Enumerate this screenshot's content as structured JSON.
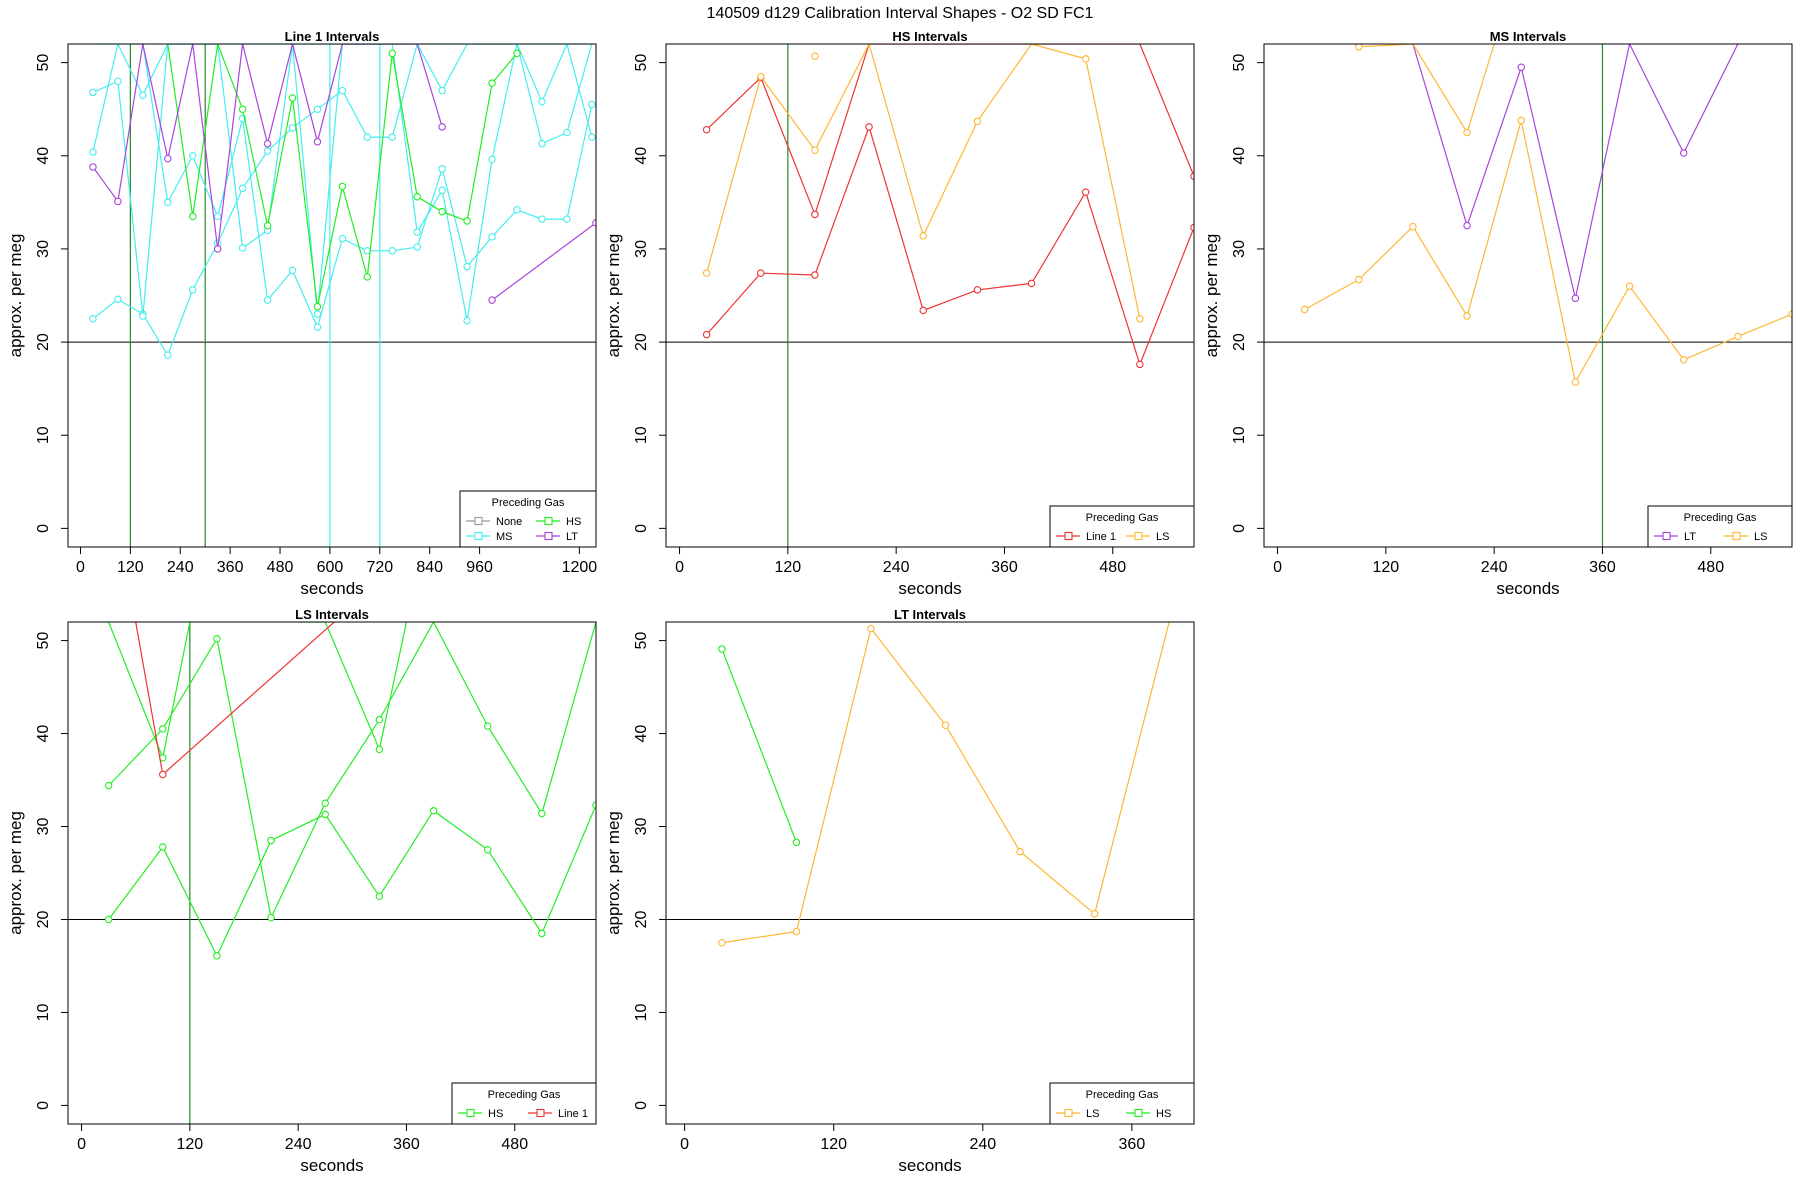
{
  "figure": {
    "title": "140509   d129   Calibration Interval Shapes - O2 SD FC1"
  },
  "colors": {
    "None": "#999999",
    "HS": "#22EE22",
    "MS": "#44EEEE",
    "LT": "#AA44DD",
    "Line 1": "#EE3333",
    "LS": "#FFB733",
    "vline_green": "#228B22",
    "vline_cyan": "#44EEEE",
    "reference": "#000000"
  },
  "chart_data": [
    {
      "type": "line",
      "title": "Line 1 Intervals",
      "xlabel": "seconds",
      "ylabel": "approx. per meg",
      "xlim": [
        -30,
        1240
      ],
      "ylim": [
        -2,
        52
      ],
      "xticks": [
        0,
        120,
        240,
        360,
        480,
        600,
        720,
        840,
        960,
        1200
      ],
      "yticks": [
        0,
        10,
        20,
        30,
        40,
        50
      ],
      "hline": 20,
      "vlines": [
        {
          "x": 120,
          "gas": "vline_green"
        },
        {
          "x": 300,
          "gas": "vline_green"
        },
        {
          "x": 600,
          "gas": "vline_cyan"
        },
        {
          "x": 720,
          "gas": "vline_cyan"
        }
      ],
      "legend": {
        "title": "Preceding Gas",
        "entries": [
          "None",
          "HS",
          "MS",
          "LT"
        ],
        "ncol": 2,
        "position": "bottom-right"
      },
      "series": [
        {
          "name": "MS",
          "x": [
            30,
            90,
            150,
            210,
            270,
            330,
            390,
            450,
            510,
            570,
            630,
            690,
            750,
            810,
            870,
            930,
            990,
            1050,
            1110,
            1170,
            1230
          ],
          "y": [
            22.5,
            24.6,
            23.0,
            18.6,
            25.6,
            30.6,
            36.5,
            40.5,
            43.0,
            45.0,
            47.0,
            42.0,
            42.0,
            52.0,
            52.0,
            52.0,
            52.0,
            52.0,
            52.0,
            52.0,
            52.0
          ]
        },
        {
          "name": "MS",
          "x": [
            30,
            90,
            150,
            210,
            270,
            330,
            390,
            450,
            510,
            570,
            630,
            690,
            750,
            810,
            870,
            930,
            990,
            1050,
            1110,
            1170,
            1230
          ],
          "y": [
            40.4,
            52.0,
            52.0,
            35.0,
            40.0,
            33.5,
            44.0,
            24.5,
            27.7,
            21.6,
            31.1,
            29.8,
            29.8,
            30.2,
            38.6,
            28.1,
            31.3,
            34.2,
            33.2,
            33.2,
            45.5
          ]
        },
        {
          "name": "MS",
          "x": [
            30,
            90,
            150,
            210,
            270,
            330,
            390,
            450,
            510,
            570,
            630,
            690,
            750,
            810,
            870,
            930,
            990,
            1050,
            1110,
            1170,
            1230
          ],
          "y": [
            46.8,
            48.0,
            22.8,
            52.0,
            52.0,
            52.0,
            30.1,
            32.0,
            52.0,
            23.0,
            52.0,
            52.0,
            52.0,
            31.8,
            36.3,
            22.3,
            39.6,
            52.0,
            41.3,
            42.5,
            52.0
          ]
        },
        {
          "name": "MS",
          "x": [
            30,
            90,
            150,
            210,
            270,
            330,
            390,
            450,
            510,
            570,
            630,
            690,
            750,
            810,
            870,
            930,
            990,
            1050,
            1110,
            1170,
            1230
          ],
          "y": [
            52.0,
            52.0,
            46.5,
            52.0,
            52.0,
            52.0,
            52.0,
            52.0,
            52.0,
            52.0,
            52.0,
            52.0,
            52.0,
            52.0,
            47.0,
            52.0,
            52.0,
            52.0,
            45.8,
            52.0,
            42.0
          ]
        },
        {
          "name": "HS",
          "x": [
            210,
            270,
            330,
            390,
            450,
            510,
            570,
            630,
            690,
            750,
            810,
            870,
            930,
            990,
            1050
          ],
          "y": [
            52.0,
            33.5,
            52.0,
            45.0,
            32.5,
            46.2,
            23.8,
            36.7,
            27.0,
            51.0,
            35.6,
            34.0,
            33.0,
            47.8,
            51.0
          ]
        },
        {
          "name": "LT",
          "x": [
            30,
            90,
            150,
            210,
            270,
            330,
            390,
            450,
            510,
            570,
            630,
            690,
            750,
            810,
            870
          ],
          "y": [
            38.8,
            35.1,
            52.0,
            39.7,
            52.0,
            30.0,
            52.0,
            41.3,
            52.0,
            41.5,
            52.0,
            52.0,
            52.0,
            52.0,
            43.1
          ]
        },
        {
          "name": "LT",
          "x": [
            990,
            1240
          ],
          "y": [
            24.5,
            32.8
          ]
        }
      ]
    },
    {
      "type": "line",
      "title": "HS Intervals",
      "xlabel": "seconds",
      "ylabel": "approx. per meg",
      "xlim": [
        -15,
        570
      ],
      "ylim": [
        -2,
        52
      ],
      "xticks": [
        0,
        120,
        240,
        360,
        480
      ],
      "yticks": [
        0,
        10,
        20,
        30,
        40,
        50
      ],
      "hline": 20,
      "vlines": [
        {
          "x": 120,
          "gas": "vline_green"
        }
      ],
      "legend": {
        "title": "Preceding Gas",
        "entries": [
          "Line 1",
          "LS"
        ],
        "ncol": 2,
        "position": "bottom-right"
      },
      "series": [
        {
          "name": "Line 1",
          "x": [
            30,
            90,
            150,
            210,
            270,
            330,
            390,
            450,
            510,
            570
          ],
          "y": [
            20.8,
            27.4,
            27.2,
            43.1,
            23.4,
            25.6,
            26.3,
            36.1,
            17.6,
            32.3
          ]
        },
        {
          "name": "Line 1",
          "x": [
            30,
            90,
            150,
            210,
            270,
            330,
            390,
            450,
            510,
            570
          ],
          "y": [
            42.8,
            48.4,
            33.7,
            52.0,
            52.0,
            52.0,
            52.0,
            52.0,
            52.0,
            37.8
          ]
        },
        {
          "name": "LS",
          "x": [
            30,
            90,
            150,
            210,
            270,
            330,
            390,
            450,
            510
          ],
          "y": [
            27.4,
            48.5,
            40.6,
            52.0,
            31.4,
            43.7,
            52.0,
            50.4,
            22.5
          ]
        },
        {
          "name": "LS",
          "x": [
            150
          ],
          "y": [
            50.7
          ]
        }
      ]
    },
    {
      "type": "line",
      "title": "MS Intervals",
      "xlabel": "seconds",
      "ylabel": "approx. per meg",
      "xlim": [
        -15,
        570
      ],
      "ylim": [
        -2,
        52
      ],
      "xticks": [
        0,
        120,
        240,
        360,
        480
      ],
      "yticks": [
        0,
        10,
        20,
        30,
        40,
        50
      ],
      "hline": 20,
      "vlines": [
        {
          "x": 360,
          "gas": "vline_green"
        }
      ],
      "legend": {
        "title": "Preceding Gas",
        "entries": [
          "LT",
          "LS"
        ],
        "ncol": 2,
        "position": "bottom-right"
      },
      "series": [
        {
          "name": "LT",
          "x": [
            150,
            210,
            270,
            330,
            390,
            450,
            510
          ],
          "y": [
            52.0,
            32.5,
            49.5,
            24.7,
            52.0,
            40.3,
            52.0
          ]
        },
        {
          "name": "LS",
          "x": [
            30,
            90,
            150,
            210,
            270,
            330,
            390,
            450,
            510,
            570
          ],
          "y": [
            23.5,
            26.7,
            32.4,
            22.8,
            43.8,
            15.7,
            26.0,
            18.1,
            20.6,
            23.0
          ]
        },
        {
          "name": "LS",
          "x": [
            90,
            150,
            210,
            240
          ],
          "y": [
            51.7,
            52.0,
            42.5,
            52.0
          ]
        }
      ]
    },
    {
      "type": "line",
      "title": "LS Intervals",
      "xlabel": "seconds",
      "ylabel": "approx. per meg",
      "xlim": [
        -15,
        570
      ],
      "ylim": [
        -2,
        52
      ],
      "xticks": [
        0,
        120,
        240,
        360,
        480
      ],
      "yticks": [
        0,
        10,
        20,
        30,
        40,
        50
      ],
      "hline": 20,
      "vlines": [
        {
          "x": 120,
          "gas": "vline_green"
        }
      ],
      "legend": {
        "title": "Preceding Gas",
        "entries": [
          "HS",
          "Line 1"
        ],
        "ncol": 2,
        "position": "bottom-right"
      },
      "series": [
        {
          "name": "HS",
          "x": [
            30,
            90,
            150,
            210,
            270,
            330,
            390,
            450,
            510,
            570
          ],
          "y": [
            20.0,
            27.8,
            16.1,
            28.5,
            31.3,
            22.5,
            31.7,
            27.5,
            18.5,
            32.3
          ]
        },
        {
          "name": "HS",
          "x": [
            30,
            90,
            150,
            210,
            270,
            330,
            390,
            450,
            510,
            570
          ],
          "y": [
            34.4,
            40.5,
            50.2,
            20.2,
            32.5,
            41.5,
            52.0,
            40.8,
            31.4,
            52.0
          ]
        },
        {
          "name": "HS",
          "x": [
            30,
            90,
            120
          ],
          "y": [
            52.0,
            37.4,
            52.0
          ]
        },
        {
          "name": "HS",
          "x": [
            240,
            270,
            330,
            360
          ],
          "y": [
            52.0,
            52.0,
            38.3,
            52.0
          ]
        },
        {
          "name": "Line 1",
          "x": [
            60,
            90,
            280
          ],
          "y": [
            52.0,
            35.6,
            52.0
          ]
        }
      ]
    },
    {
      "type": "line",
      "title": "LT Intervals",
      "xlabel": "seconds",
      "ylabel": "approx. per meg",
      "xlim": [
        -15,
        410
      ],
      "ylim": [
        -2,
        52
      ],
      "xticks": [
        0,
        120,
        240,
        360
      ],
      "yticks": [
        0,
        10,
        20,
        30,
        40,
        50
      ],
      "hline": 20,
      "vlines": [],
      "legend": {
        "title": "Preceding Gas",
        "entries": [
          "LS",
          "HS"
        ],
        "ncol": 2,
        "position": "bottom-right"
      },
      "series": [
        {
          "name": "HS",
          "x": [
            30,
            90
          ],
          "y": [
            49.1,
            28.3
          ]
        },
        {
          "name": "LS",
          "x": [
            30,
            90,
            150,
            210,
            270,
            330,
            390
          ],
          "y": [
            17.5,
            18.7,
            51.3,
            40.9,
            27.3,
            20.6,
            52.0
          ]
        }
      ]
    }
  ]
}
